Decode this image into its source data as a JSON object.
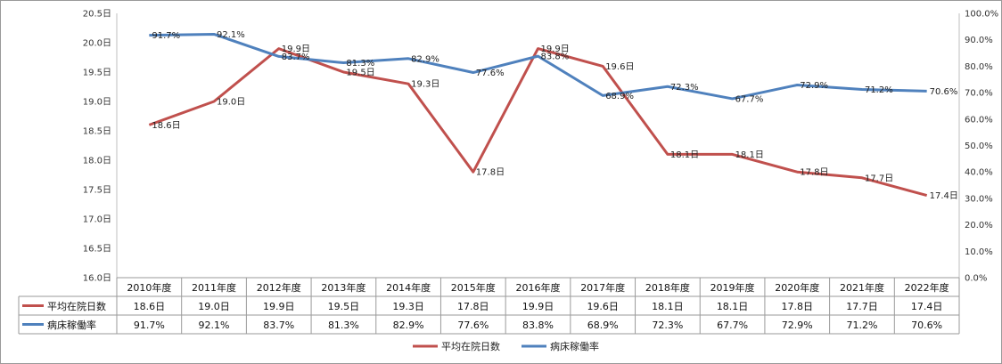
{
  "chart_data": {
    "type": "line",
    "categories": [
      "2010年度",
      "2011年度",
      "2012年度",
      "2013年度",
      "2014年度",
      "2015年度",
      "2016年度",
      "2017年度",
      "2018年度",
      "2019年度",
      "2020年度",
      "2021年度",
      "2022年度"
    ],
    "y_left": {
      "ticks": [
        "16.0日",
        "16.5日",
        "17.0日",
        "17.5日",
        "18.0日",
        "18.5日",
        "19.0日",
        "19.5日",
        "20.0日",
        "20.5日"
      ],
      "ylim": [
        16.0,
        20.5
      ]
    },
    "y_right": {
      "ticks": [
        "0.0%",
        "10.0%",
        "20.0%",
        "30.0%",
        "40.0%",
        "50.0%",
        "60.0%",
        "70.0%",
        "80.0%",
        "90.0%",
        "100.0%"
      ],
      "ylim": [
        0,
        100
      ]
    },
    "series": [
      {
        "name": "平均在院日数",
        "axis": "left",
        "color": "#c0504d",
        "values": [
          18.6,
          19.0,
          19.9,
          19.5,
          19.3,
          17.8,
          19.9,
          19.6,
          18.1,
          18.1,
          17.8,
          17.7,
          17.4
        ],
        "labels": [
          "18.6日",
          "19.0日",
          "19.9日",
          "19.5日",
          "19.3日",
          "17.8日",
          "19.9日",
          "19.6日",
          "18.1日",
          "18.1日",
          "17.8日",
          "17.7日",
          "17.4日"
        ]
      },
      {
        "name": "病床稼働率",
        "axis": "right",
        "color": "#4f81bd",
        "values": [
          91.7,
          92.1,
          83.7,
          81.3,
          82.9,
          77.6,
          83.8,
          68.9,
          72.3,
          67.7,
          72.9,
          71.2,
          70.6
        ],
        "labels": [
          "91.7%",
          "92.1%",
          "83.7%",
          "81.3%",
          "82.9%",
          "77.6%",
          "83.8%",
          "68.9%",
          "72.3%",
          "67.7%",
          "72.9%",
          "71.2%",
          "70.6%"
        ]
      }
    ],
    "grid": false,
    "legend": "bottom-center"
  }
}
